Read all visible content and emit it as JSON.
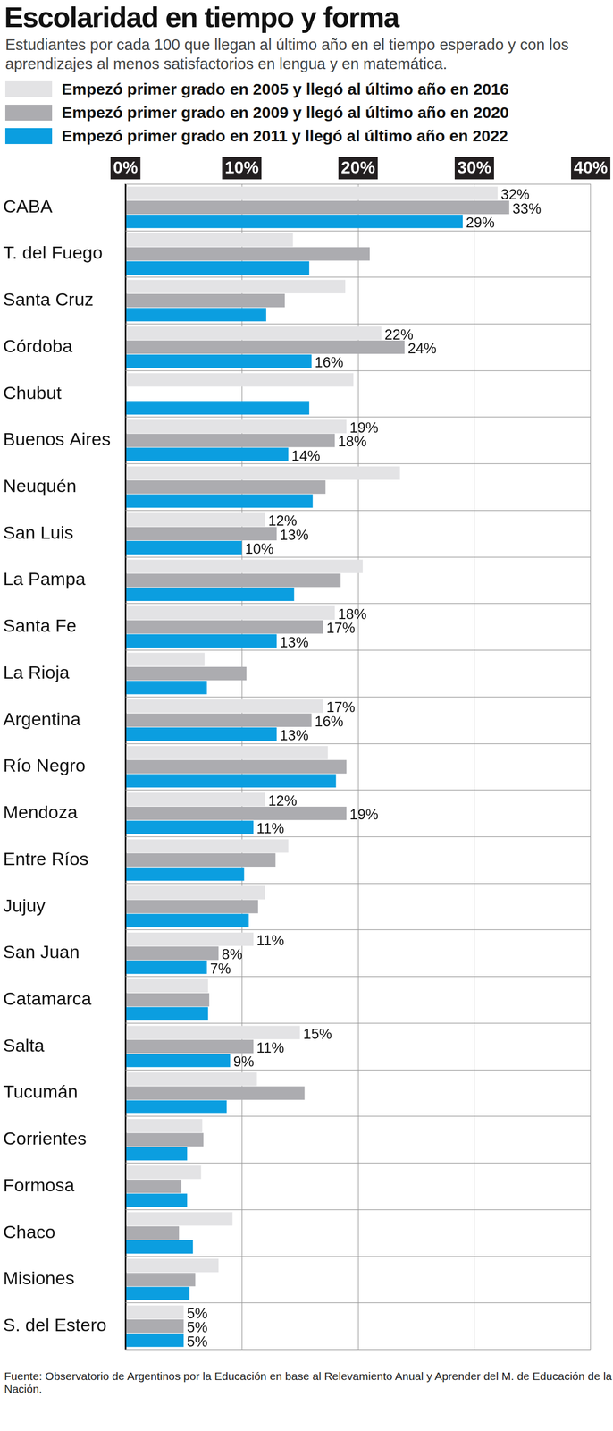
{
  "chart_data": {
    "type": "bar",
    "orientation": "horizontal",
    "title": "Escolaridad en tiempo y forma",
    "subtitle": "Estudiantes por cada 100 que llegan al último año en el tiempo esperado y con los aprendizajes al menos satisfactorios en lengua y en matemática.",
    "source": "Fuente: Observatorio de Argentinos por la Educación en base al Relevamiento Anual y Aprender del M. de Educación de la Nación.",
    "categories": [
      "CABA",
      "T. del Fuego",
      "Santa Cruz",
      "Córdoba",
      "Chubut",
      "Buenos Aires",
      "Neuquén",
      "San Luis",
      "La Pampa",
      "Santa Fe",
      "La Rioja",
      "Argentina",
      "Río Negro",
      "Mendoza",
      "Entre Ríos",
      "Jujuy",
      "San Juan",
      "Catamarca",
      "Salta",
      "Tucumán",
      "Corrientes",
      "Formosa",
      "Chaco",
      "Misiones",
      "S. del Estero"
    ],
    "series": [
      {
        "name": "Empezó primer grado en 2005 y llegó al último año en 2016",
        "color": "#e3e3e5",
        "values": [
          32,
          14.4,
          18.9,
          22,
          19.6,
          19,
          23.6,
          12,
          20.4,
          18,
          6.8,
          17,
          17.4,
          12,
          14.0,
          12.0,
          11,
          7.1,
          15,
          11.3,
          6.6,
          6.5,
          9.2,
          8.0,
          5
        ],
        "value_labels": [
          "32%",
          null,
          null,
          "22%",
          null,
          "19%",
          null,
          "12%",
          null,
          "18%",
          null,
          "17%",
          null,
          "12%",
          null,
          null,
          "11%",
          null,
          "15%",
          null,
          null,
          null,
          null,
          null,
          "5%"
        ]
      },
      {
        "name": "Empezó primer grado en 2009 y llegó al último año en 2020",
        "color": "#acacb0",
        "values": [
          33,
          21.0,
          13.7,
          24,
          null,
          18,
          17.2,
          13,
          18.5,
          17,
          10.4,
          16,
          19.0,
          19,
          12.9,
          11.4,
          8,
          7.2,
          11,
          15.4,
          6.7,
          4.8,
          4.6,
          6.0,
          5
        ],
        "value_labels": [
          "33%",
          null,
          null,
          "24%",
          null,
          "18%",
          null,
          "13%",
          null,
          "17%",
          null,
          "16%",
          null,
          "19%",
          null,
          null,
          "8%",
          null,
          "11%",
          null,
          null,
          null,
          null,
          null,
          "5%"
        ]
      },
      {
        "name": "Empezó primer grado en 2011 y llegó al último año en 2022",
        "color": "#0b9ee0",
        "values": [
          29,
          15.8,
          12.1,
          16,
          15.8,
          14,
          16.1,
          10,
          14.5,
          13,
          7.0,
          13,
          18.1,
          11,
          10.2,
          10.6,
          7,
          7.1,
          9,
          8.7,
          5.3,
          5.3,
          5.8,
          5.5,
          5
        ],
        "value_labels": [
          "29%",
          null,
          null,
          "16%",
          null,
          "14%",
          null,
          "10%",
          null,
          "13%",
          null,
          "13%",
          null,
          "11%",
          null,
          null,
          "7%",
          null,
          "9%",
          null,
          null,
          null,
          null,
          null,
          "5%"
        ]
      }
    ],
    "xlim": [
      0,
      40
    ],
    "xticks": [
      {
        "value": 0,
        "label": "0%"
      },
      {
        "value": 10,
        "label": "10%"
      },
      {
        "value": 20,
        "label": "20%"
      },
      {
        "value": 30,
        "label": "30%"
      },
      {
        "value": 40,
        "label": "40%"
      }
    ],
    "grid": true,
    "legend": "top",
    "data_labels": true
  }
}
